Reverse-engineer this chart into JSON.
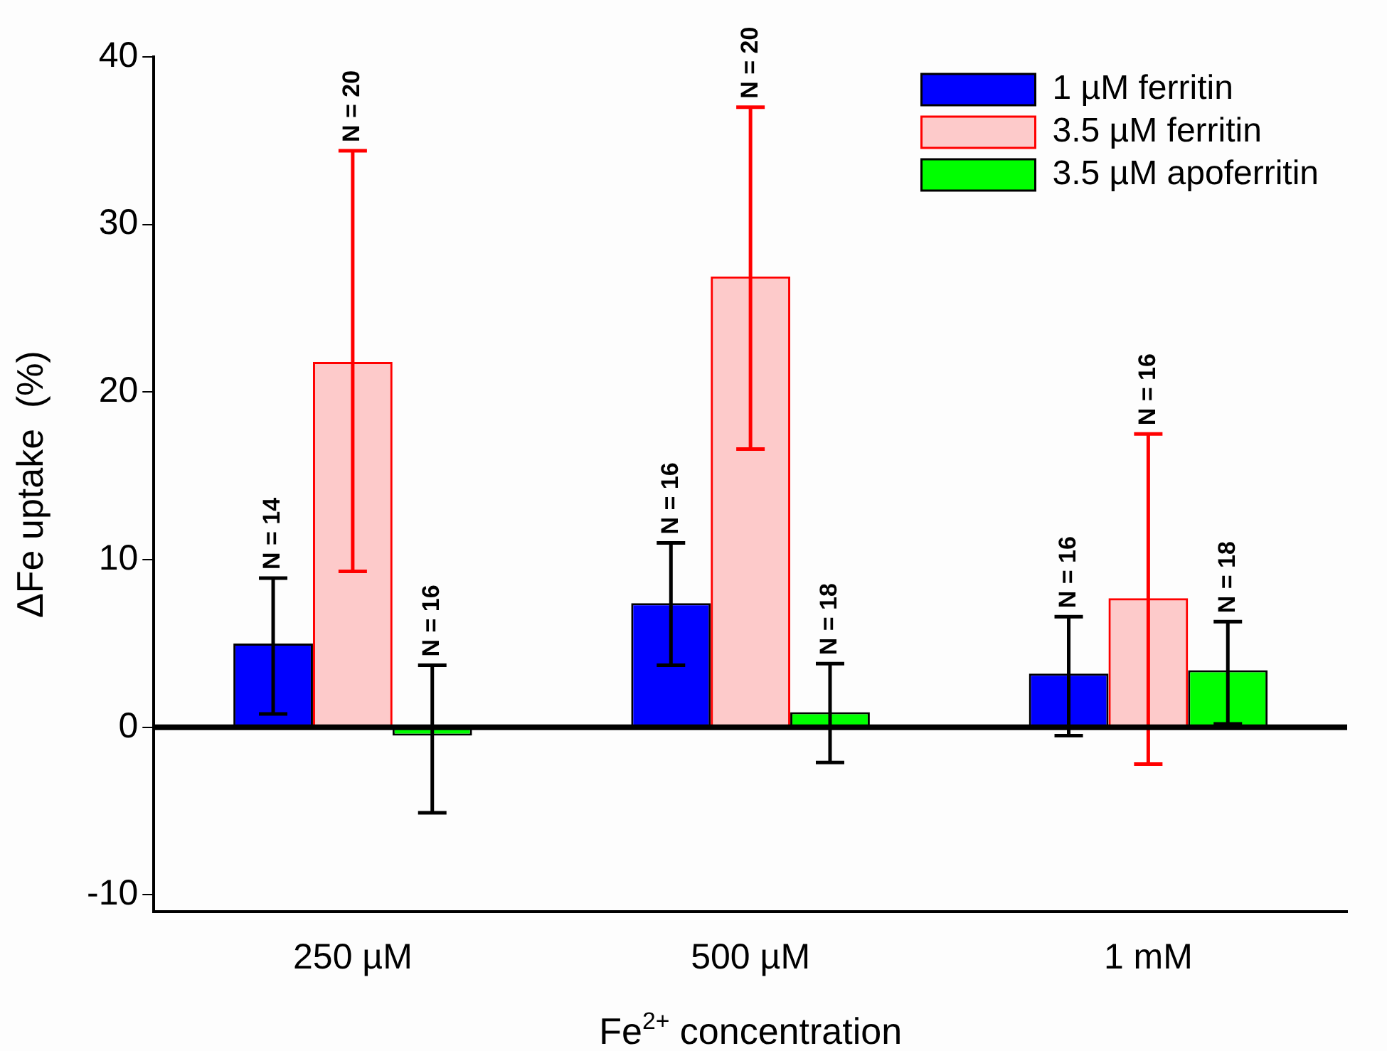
{
  "chart_data": {
    "type": "bar",
    "xlabel": "Fe$^{2+}$ concentration",
    "ylabel": "ΔFe uptake  (%)",
    "categories": [
      "250 µM",
      "500 µM",
      "1 mM"
    ],
    "series": [
      {
        "name": "1 µM ferritin",
        "color": "#0000ff",
        "values": [
          5.0,
          7.4,
          3.2
        ],
        "errors": [
          [
            0.8,
            8.9
          ],
          [
            3.7,
            11.0
          ],
          [
            -0.5,
            6.6
          ]
        ]
      },
      {
        "name": "3.5 µM ferritin",
        "color": "#ff0000",
        "values": [
          21.8,
          26.9,
          7.7
        ],
        "errors": [
          [
            9.3,
            34.4
          ],
          [
            16.6,
            37.0
          ],
          [
            -2.2,
            17.5
          ]
        ]
      },
      {
        "name": "3.5 µM apoferritin",
        "color": "#00ff00",
        "values": [
          -0.5,
          0.9,
          3.4
        ],
        "errors": [
          [
            -5.1,
            3.7
          ],
          [
            -2.1,
            3.8
          ],
          [
            0.2,
            6.3
          ]
        ]
      }
    ],
    "annotations": [
      "N = 14",
      "N = 20",
      "N = 16",
      "N = 16",
      "N = 20",
      "N = 18",
      "N = 16",
      "N = 16",
      "N = 18"
    ],
    "ylim": [
      -11,
      40
    ],
    "yticks": [
      -10,
      0,
      10,
      20,
      30,
      40
    ],
    "ref_lines": [
      {
        "axis": "y",
        "value": 0,
        "color": "#000000"
      }
    ],
    "legend": "top right",
    "grid": false
  }
}
